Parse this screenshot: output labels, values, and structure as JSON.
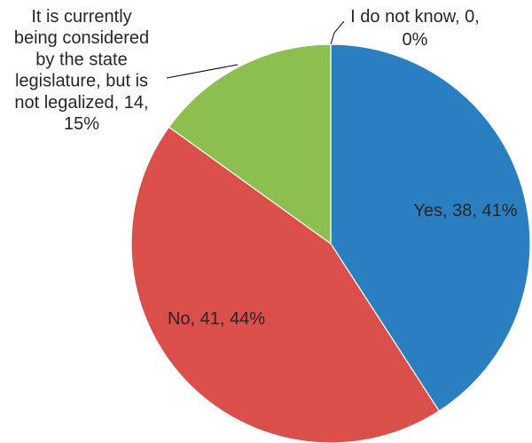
{
  "chart_data": {
    "type": "pie",
    "title": "",
    "start_angle_deg": 0,
    "direction": "clockwise",
    "slices": [
      {
        "label": "Yes",
        "value": 38,
        "percent": 41,
        "color": "#2a7fc1",
        "data_label": [
          "Yes, 38, 41%"
        ]
      },
      {
        "label": "No",
        "value": 41,
        "percent": 44,
        "color": "#db4f4a",
        "data_label": [
          "No, 41, 44%"
        ]
      },
      {
        "label": "It is currently being considered by the state legislature, but is not legalized",
        "value": 14,
        "percent": 15,
        "color": "#8dbe50",
        "data_label": [
          "It is currently",
          "being considered",
          "by the state",
          "legislature, but is",
          "not legalized, 14,",
          "15%"
        ]
      },
      {
        "label": "I do not know",
        "value": 0,
        "percent": 0,
        "color": "#9e9e9e",
        "data_label": [
          "I do not know, 0,",
          "0%"
        ]
      }
    ]
  }
}
